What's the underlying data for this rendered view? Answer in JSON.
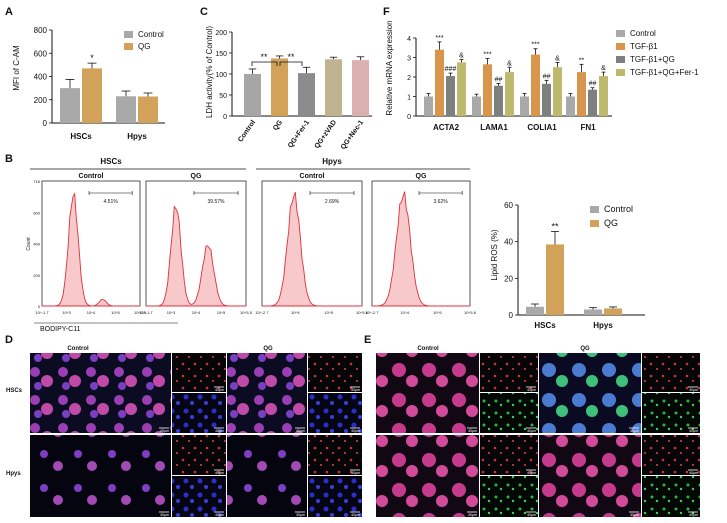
{
  "colors": {
    "control_gray": "#a9a9a9",
    "qg_orange": "#d2a25a",
    "panelC": [
      "#a6a6a6",
      "#d2a25a",
      "#8c8c8c",
      "#bfb48f",
      "#dbb0b0"
    ],
    "panelF": [
      "#a9a9a9",
      "#d8954b",
      "#7f7f7f",
      "#bfb86f"
    ],
    "flow_line": "#e0303a",
    "flow_fill": "#f7c9cb"
  },
  "panels": {
    "A": {
      "letter": "A",
      "ylabel": "MFI of C-AM",
      "yticks": [
        "0",
        "200",
        "400",
        "600",
        "800"
      ],
      "categories": [
        "HSCs",
        "Hpys"
      ],
      "legend": [
        "Control",
        "QG"
      ],
      "annotations": [
        "*"
      ]
    },
    "B": {
      "letter": "B",
      "group_labels": [
        "HSCs",
        "Hpys"
      ],
      "sub_labels": [
        "Control",
        "QG",
        "Control",
        "QG"
      ],
      "gate_pcts": [
        "4.51%",
        "39.57%",
        "2.69%",
        "3.62%"
      ],
      "ylabel": "Count",
      "yticks": [
        "0",
        "200",
        "400",
        "600",
        "716"
      ],
      "xticks_hsc": [
        "10^-1.7",
        "10^3",
        "10^4",
        "10^5",
        "10^5.5"
      ],
      "xticks_hpy": [
        "10^-2.7",
        "10^4",
        "10^5",
        "10^5.6"
      ],
      "stain": "BODIPY-C11",
      "bar": {
        "ylabel": "Lipid ROS (%)",
        "yticks": [
          "0",
          "20",
          "40",
          "60"
        ],
        "categories": [
          "HSCs",
          "Hpys"
        ],
        "legend": [
          "Control",
          "QG"
        ],
        "annotations": [
          "**"
        ]
      }
    },
    "C": {
      "letter": "C",
      "ylabel": "LDH activity(% of Control)",
      "yticks": [
        "0",
        "50",
        "100",
        "150",
        "200"
      ],
      "categories": [
        "Control",
        "QG",
        "QG+Fer-1",
        "QG+zVAD",
        "QG+Nec-1"
      ],
      "annotations": [
        "**",
        "**"
      ]
    },
    "D": {
      "letter": "D",
      "col_labels": [
        "Control",
        "QG"
      ],
      "row_labels": [
        "HSCs",
        "Hpys"
      ],
      "scale": "40μm"
    },
    "E": {
      "letter": "E",
      "col_labels": [
        "Control",
        "QG"
      ],
      "scale": "40μm"
    },
    "F": {
      "letter": "F",
      "ylabel": "Relative mRNA expression",
      "yticks": [
        "0",
        "1",
        "2",
        "3",
        "4"
      ],
      "categories": [
        "ACTA2",
        "LAMA1",
        "COLIA1",
        "FN1"
      ],
      "legend": [
        "Control",
        "TGF-β1",
        "TGF-β1+QG",
        "TGF-β1+QG+Fer-1"
      ],
      "annotations": [
        "***",
        "###",
        "&",
        "***",
        "##",
        "&",
        "***",
        "##",
        "&",
        "**",
        "##",
        "&"
      ]
    }
  },
  "chart_data": [
    {
      "type": "bar",
      "panel": "A",
      "categories": [
        "HSCs",
        "Hpys"
      ],
      "series": [
        {
          "name": "Control",
          "values": [
            300,
            230
          ],
          "errors": [
            75,
            45
          ]
        },
        {
          "name": "QG",
          "values": [
            470,
            228
          ],
          "errors": [
            45,
            30
          ]
        }
      ],
      "ylabel": "MFI of C-AM",
      "ylim": [
        0,
        800
      ],
      "legend": "top-right",
      "grid": false
    },
    {
      "type": "bar",
      "panel": "B",
      "categories": [
        "HSCs",
        "Hpys"
      ],
      "series": [
        {
          "name": "Control",
          "values": [
            4.5,
            3.0
          ],
          "errors": [
            1.5,
            1.0
          ]
        },
        {
          "name": "QG",
          "values": [
            38.5,
            3.6
          ],
          "errors": [
            7,
            0.8
          ]
        }
      ],
      "ylabel": "Lipid ROS (%)",
      "ylim": [
        0,
        60
      ],
      "legend": "top-right",
      "grid": false
    },
    {
      "type": "bar",
      "panel": "C",
      "categories": [
        "Control",
        "QG",
        "QG+Fer-1",
        "QG+zVAD",
        "QG+Nec-1"
      ],
      "values": [
        100,
        137,
        102,
        135,
        133
      ],
      "errors": [
        12,
        6,
        14,
        5,
        8
      ],
      "ylabel": "LDH activity(% of Control)",
      "ylim": [
        0,
        200
      ],
      "grid": false
    },
    {
      "type": "bar",
      "panel": "F",
      "categories": [
        "ACTA2",
        "LAMA1",
        "COLIA1",
        "FN1"
      ],
      "series": [
        {
          "name": "Control",
          "values": [
            1.0,
            1.0,
            1.0,
            1.0
          ],
          "errors": [
            0.15,
            0.12,
            0.15,
            0.15
          ]
        },
        {
          "name": "TGF-β1",
          "values": [
            3.4,
            2.65,
            3.15,
            2.25
          ],
          "errors": [
            0.4,
            0.3,
            0.3,
            0.4
          ]
        },
        {
          "name": "TGF-β1+QG",
          "values": [
            2.05,
            1.55,
            1.65,
            1.35
          ],
          "errors": [
            0.15,
            0.12,
            0.18,
            0.1
          ]
        },
        {
          "name": "TGF-β1+QG+Fer-1",
          "values": [
            2.75,
            2.25,
            2.5,
            2.05
          ],
          "errors": [
            0.15,
            0.25,
            0.25,
            0.2
          ]
        }
      ],
      "ylabel": "Relative mRNA expression",
      "ylim": [
        0,
        4
      ],
      "legend": "top-right",
      "grid": false
    }
  ]
}
